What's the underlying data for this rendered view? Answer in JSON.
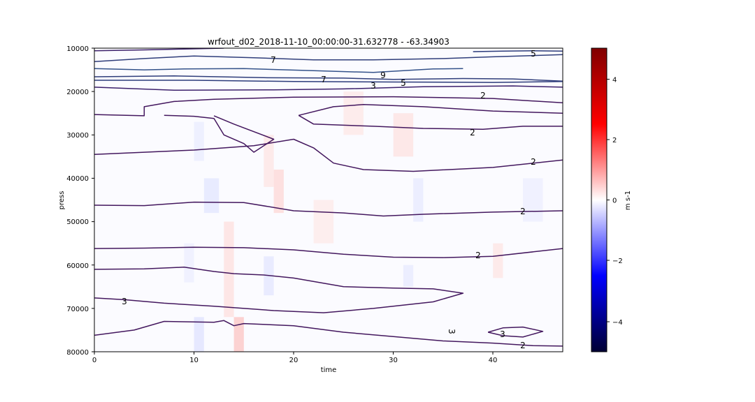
{
  "chart_data": {
    "type": "heatmap",
    "title": "wrfout_d02_2018-11-10_00:00:00-31.632778 - -63.34903",
    "xlabel": "time",
    "ylabel": "press",
    "xlim": [
      0,
      47
    ],
    "ylim": [
      80000,
      10000
    ],
    "y_inverted": true,
    "xticks": [
      "0",
      "10",
      "20",
      "30",
      "40"
    ],
    "yticks": [
      "10000",
      "20000",
      "30000",
      "40000",
      "50000",
      "60000",
      "70000",
      "80000"
    ],
    "colorbar": {
      "label": "m s-1",
      "range": [
        -5,
        5
      ],
      "ticks": [
        "4",
        "2",
        "0",
        "−2",
        "−4"
      ],
      "colormap": "seismic",
      "colors": [
        "#000033",
        "#0000ff",
        "#ffffff",
        "#ff0000",
        "#800000"
      ]
    },
    "contour_labels": [
      "5",
      "7",
      "9",
      "7",
      "3",
      "5",
      "2",
      "2",
      "2",
      "2",
      "2",
      "3",
      "3",
      "3",
      "2"
    ],
    "contours": [
      {
        "level": 3,
        "color": "#3b1f6b",
        "points": [
          [
            0,
            10600
          ],
          [
            5,
            10400
          ],
          [
            9,
            10200
          ],
          [
            13,
            10000
          ]
        ]
      },
      {
        "level": 5,
        "color": "#2b3a7a",
        "points": [
          [
            38,
            10800
          ],
          [
            41,
            10700
          ],
          [
            44,
            10600
          ],
          [
            47,
            10700
          ]
        ]
      },
      {
        "level": 7,
        "color": "#2f3d7a",
        "points": [
          [
            0,
            13100
          ],
          [
            5,
            12400
          ],
          [
            10,
            11800
          ],
          [
            16,
            12200
          ],
          [
            22,
            12700
          ],
          [
            28,
            12700
          ],
          [
            35,
            12400
          ],
          [
            40,
            12000
          ],
          [
            47,
            11500
          ]
        ]
      },
      {
        "level": 9,
        "color": "#34528a",
        "points": [
          [
            0,
            14700
          ],
          [
            5,
            15000
          ],
          [
            9,
            14800
          ],
          [
            15,
            14700
          ],
          [
            22,
            15200
          ],
          [
            28,
            15600
          ],
          [
            34,
            14800
          ],
          [
            37,
            14700
          ]
        ]
      },
      {
        "level": 7,
        "color": "#2f3d7a",
        "points": [
          [
            0,
            16600
          ],
          [
            8,
            16400
          ],
          [
            17,
            16800
          ],
          [
            25,
            16900
          ],
          [
            30,
            17200
          ],
          [
            37,
            17000
          ],
          [
            42,
            17100
          ],
          [
            47,
            17600
          ]
        ]
      },
      {
        "level": 5,
        "color": "#2b3a7a",
        "points": [
          [
            0,
            17400
          ],
          [
            10,
            17400
          ],
          [
            20,
            17700
          ],
          [
            30,
            17800
          ],
          [
            40,
            17900
          ],
          [
            47,
            17700
          ]
        ]
      },
      {
        "level": 3,
        "color": "#3b1f6b",
        "points": [
          [
            0,
            19000
          ],
          [
            8,
            19700
          ],
          [
            18,
            19600
          ],
          [
            25,
            19400
          ],
          [
            33,
            18900
          ],
          [
            42,
            18700
          ],
          [
            47,
            19000
          ]
        ]
      },
      {
        "level": 2,
        "color": "#43175e",
        "points": [
          [
            0,
            25300
          ],
          [
            5,
            25600
          ],
          [
            5,
            23500
          ],
          [
            8,
            22300
          ],
          [
            12,
            21800
          ],
          [
            20,
            21300
          ],
          [
            30,
            21200
          ],
          [
            40,
            21600
          ],
          [
            47,
            22600
          ]
        ]
      },
      {
        "level": 2,
        "color": "#43175e",
        "points": [
          [
            7,
            25500
          ],
          [
            10,
            25700
          ],
          [
            12,
            26200
          ],
          [
            13,
            30000
          ],
          [
            15,
            32000
          ],
          [
            16,
            34000
          ],
          [
            18,
            31000
          ],
          [
            14,
            27500
          ],
          [
            12,
            25600
          ]
        ]
      },
      {
        "level": 2,
        "color": "#43175e",
        "points": [
          [
            20.5,
            25500
          ],
          [
            24,
            23500
          ],
          [
            27,
            23000
          ],
          [
            33,
            23500
          ],
          [
            40,
            24500
          ],
          [
            47,
            25000
          ]
        ]
      },
      {
        "level": 2,
        "color": "#43175e",
        "points": [
          [
            20.5,
            25500
          ],
          [
            22,
            27500
          ],
          [
            28,
            28000
          ],
          [
            33,
            28500
          ],
          [
            39,
            28700
          ],
          [
            43,
            28000
          ],
          [
            47,
            28000
          ]
        ]
      },
      {
        "level": 2,
        "color": "#43175e",
        "points": [
          [
            0,
            34500
          ],
          [
            10,
            33500
          ],
          [
            16,
            32500
          ],
          [
            20,
            31000
          ],
          [
            22,
            33000
          ],
          [
            24,
            36500
          ],
          [
            27,
            38000
          ],
          [
            32,
            38400
          ],
          [
            40,
            37500
          ],
          [
            47,
            35800
          ]
        ]
      },
      {
        "level": 2,
        "color": "#43175e",
        "points": [
          [
            0,
            46200
          ],
          [
            5,
            46300
          ],
          [
            10,
            45500
          ],
          [
            15,
            45600
          ],
          [
            20,
            47500
          ],
          [
            25,
            48000
          ],
          [
            29,
            48700
          ],
          [
            33,
            48300
          ],
          [
            40,
            47800
          ],
          [
            47,
            47500
          ]
        ]
      },
      {
        "level": 2,
        "color": "#43175e",
        "points": [
          [
            0,
            56200
          ],
          [
            5,
            56100
          ],
          [
            10,
            55900
          ],
          [
            15,
            56000
          ],
          [
            20,
            56500
          ],
          [
            25,
            57500
          ],
          [
            30,
            58200
          ],
          [
            35,
            58300
          ],
          [
            40,
            58000
          ],
          [
            47,
            56200
          ]
        ]
      },
      {
        "level": 2,
        "color": "#43175e",
        "points": [
          [
            0,
            61000
          ],
          [
            5,
            60900
          ],
          [
            9,
            60500
          ],
          [
            12,
            61500
          ],
          [
            14,
            62000
          ],
          [
            17,
            62300
          ],
          [
            20,
            63000
          ],
          [
            25,
            65000
          ],
          [
            30,
            65300
          ],
          [
            34,
            65500
          ],
          [
            37,
            66500
          ],
          [
            34,
            68500
          ],
          [
            28,
            70000
          ],
          [
            23,
            71000
          ],
          [
            18,
            70500
          ],
          [
            12,
            69500
          ],
          [
            7,
            68800
          ],
          [
            3,
            68000
          ],
          [
            0,
            67600
          ]
        ]
      },
      {
        "level": 2,
        "color": "#43175e",
        "points": [
          [
            0,
            76200
          ],
          [
            4,
            75000
          ],
          [
            7,
            73000
          ],
          [
            12,
            73200
          ],
          [
            13,
            72800
          ],
          [
            14,
            74000
          ],
          [
            15,
            73500
          ],
          [
            20,
            74000
          ],
          [
            25,
            75500
          ],
          [
            30,
            76500
          ],
          [
            35,
            77500
          ],
          [
            40,
            78000
          ],
          [
            44,
            78600
          ],
          [
            47,
            78700
          ]
        ]
      },
      {
        "level": 3,
        "color": "#43175e",
        "points": [
          [
            39.5,
            75500
          ],
          [
            41,
            74500
          ],
          [
            43,
            74300
          ],
          [
            45,
            75300
          ],
          [
            43,
            76600
          ],
          [
            41,
            76300
          ],
          [
            39.5,
            75500
          ]
        ]
      }
    ]
  }
}
